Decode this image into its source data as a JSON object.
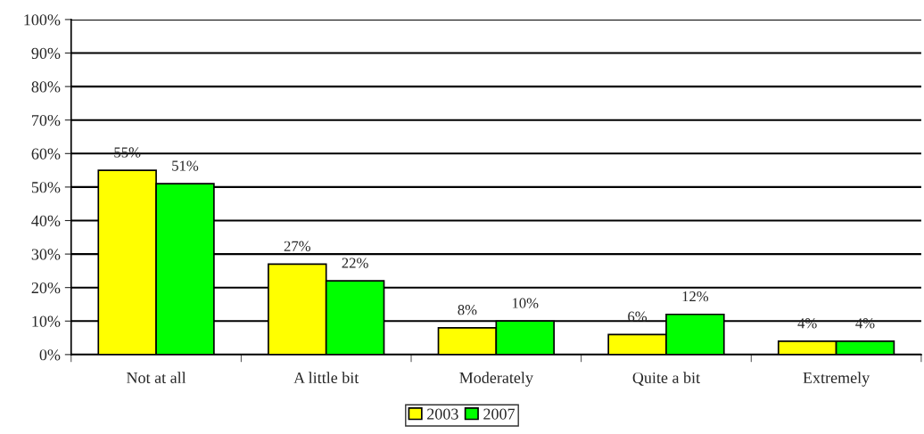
{
  "chart_data": {
    "type": "bar",
    "categories": [
      "Not at all",
      "A little bit",
      "Moderately",
      "Quite a bit",
      "Extremely"
    ],
    "series": [
      {
        "name": "2003",
        "color": "#ffff00",
        "values": [
          55,
          27,
          8,
          6,
          4
        ],
        "value_labels": [
          "55%",
          "27%",
          "8%",
          "6%",
          "4%"
        ]
      },
      {
        "name": "2007",
        "color": "#00ff00",
        "values": [
          51,
          22,
          10,
          12,
          4
        ],
        "value_labels": [
          "51%",
          "22%",
          "10%",
          "12%",
          "4%"
        ]
      }
    ],
    "ylim": [
      0,
      100
    ],
    "yticks": [
      {
        "value": 0,
        "label": "0%"
      },
      {
        "value": 10,
        "label": "10%"
      },
      {
        "value": 20,
        "label": "20%"
      },
      {
        "value": 30,
        "label": "30%"
      },
      {
        "value": 40,
        "label": "40%"
      },
      {
        "value": 50,
        "label": "50%"
      },
      {
        "value": 60,
        "label": "60%"
      },
      {
        "value": 70,
        "label": "70%"
      },
      {
        "value": 80,
        "label": "80%"
      },
      {
        "value": 90,
        "label": "90%"
      },
      {
        "value": 100,
        "label": "100%"
      }
    ],
    "grid": "y",
    "legend": "bottom"
  }
}
